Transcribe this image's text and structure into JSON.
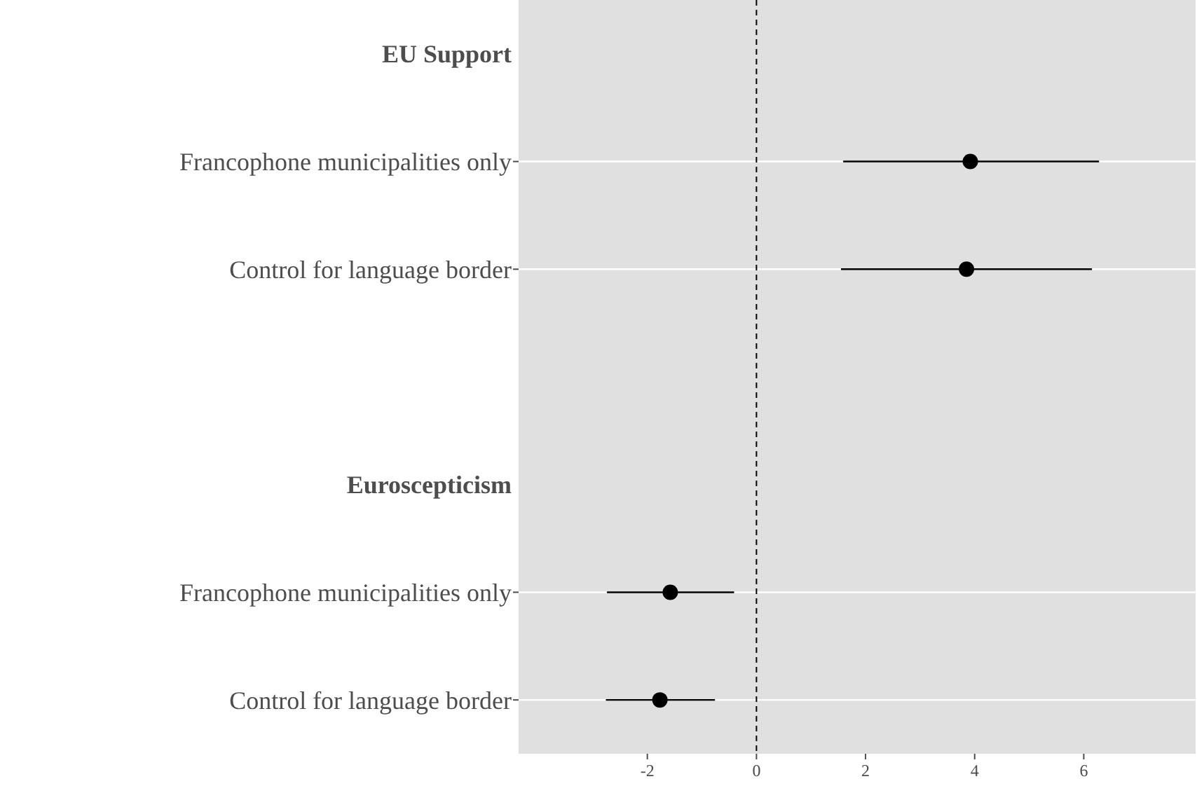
{
  "chart_data": {
    "type": "scatter",
    "orientation": "horizontal",
    "categories": [
      "EU Support",
      "Francophone municipalities only",
      "Control for language border",
      null,
      "Euroscepticism",
      "Francophone municipalities only",
      "Control for language border"
    ],
    "series": [
      {
        "color": "#000000",
        "values": [
          null,
          3.92,
          3.85,
          null,
          null,
          -1.58,
          -1.77
        ],
        "errors": [
          null,
          [
            1.59,
            6.28
          ],
          [
            1.55,
            6.15
          ],
          null,
          null,
          [
            -2.74,
            -0.41
          ],
          [
            -2.76,
            -0.76
          ]
        ]
      }
    ],
    "xlim": [
      -4.36,
      8.05
    ],
    "xticks": [
      -2,
      0,
      2,
      4,
      6
    ],
    "grid": "y",
    "marker": "circle",
    "ref_lines": [
      {
        "axis": "x",
        "value": 0,
        "line_style": "dashed",
        "color": "#000000"
      }
    ]
  }
}
